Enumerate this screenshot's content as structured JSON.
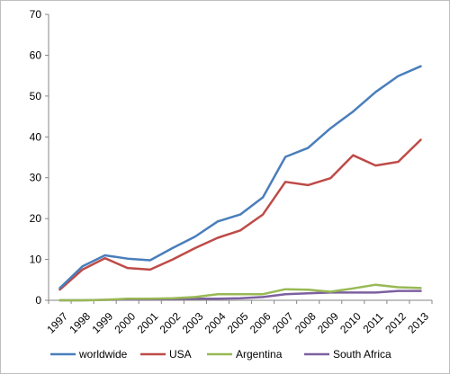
{
  "chart_data": {
    "type": "line",
    "title": "",
    "xlabel": "",
    "ylabel": "",
    "categories": [
      "1997",
      "1998",
      "1999",
      "2000",
      "2001",
      "2002",
      "2003",
      "2004",
      "2005",
      "2006",
      "2007",
      "2008",
      "2009",
      "2010",
      "2011",
      "2012",
      "2013"
    ],
    "ylim": [
      0,
      70
    ],
    "yticks": [
      0,
      10,
      20,
      30,
      40,
      50,
      60,
      70
    ],
    "grid": false,
    "legend_position": "bottom",
    "series": [
      {
        "name": "worldwide",
        "color": "#4a7ebb",
        "values": [
          3.0,
          8.3,
          11.0,
          10.2,
          9.8,
          12.8,
          15.6,
          19.3,
          21.0,
          25.2,
          35.1,
          37.3,
          42.1,
          46.2,
          51.0,
          54.9,
          57.3
        ]
      },
      {
        "name": "USA",
        "color": "#be4b48",
        "values": [
          2.6,
          7.5,
          10.3,
          7.9,
          7.5,
          10.0,
          12.8,
          15.3,
          17.1,
          21.0,
          29.0,
          28.2,
          29.9,
          35.5,
          33.0,
          33.9,
          39.3
        ]
      },
      {
        "name": "Argentina",
        "color": "#98b954",
        "values": [
          0.0,
          0.0,
          0.1,
          0.4,
          0.4,
          0.5,
          0.8,
          1.5,
          1.5,
          1.5,
          2.7,
          2.6,
          2.1,
          2.9,
          3.8,
          3.2,
          3.0
        ]
      },
      {
        "name": "South Africa",
        "color": "#7d60a0",
        "values": [
          0.0,
          0.0,
          0.1,
          0.2,
          0.2,
          0.3,
          0.4,
          0.4,
          0.5,
          0.8,
          1.5,
          1.7,
          1.9,
          1.9,
          1.9,
          2.3,
          2.3
        ]
      }
    ]
  }
}
